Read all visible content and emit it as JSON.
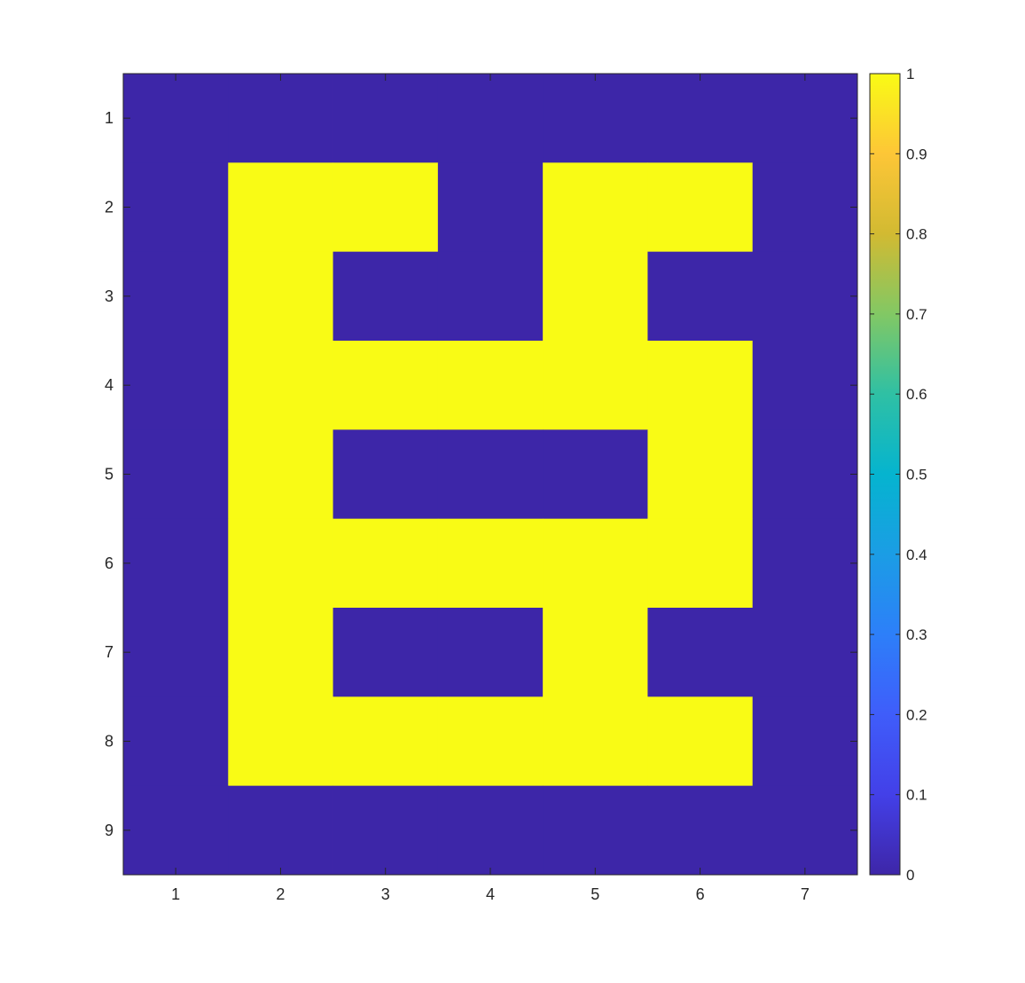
{
  "chart_data": {
    "type": "heatmap",
    "title": "",
    "xlabel": "",
    "ylabel": "",
    "x_ticks": [
      "1",
      "2",
      "3",
      "4",
      "5",
      "6",
      "7"
    ],
    "y_ticks": [
      "1",
      "2",
      "3",
      "4",
      "5",
      "6",
      "7",
      "8",
      "9"
    ],
    "xlim": [
      0.5,
      7.5
    ],
    "ylim": [
      0.5,
      9.5
    ],
    "y_direction": "reverse",
    "grid": false,
    "matrix": [
      [
        0,
        0,
        0,
        0,
        0,
        0,
        0
      ],
      [
        0,
        1,
        1,
        0,
        1,
        1,
        0
      ],
      [
        0,
        1,
        0,
        0,
        1,
        0,
        0
      ],
      [
        0,
        1,
        1,
        1,
        1,
        1,
        0
      ],
      [
        0,
        1,
        0,
        0,
        0,
        1,
        0
      ],
      [
        0,
        1,
        1,
        1,
        1,
        1,
        0
      ],
      [
        0,
        1,
        0,
        0,
        1,
        0,
        0
      ],
      [
        0,
        1,
        1,
        1,
        1,
        1,
        0
      ],
      [
        0,
        0,
        0,
        0,
        0,
        0,
        0
      ]
    ],
    "colormap": "parula",
    "colors": {
      "low": "#3d26a8",
      "high": "#f9fb15"
    },
    "colorbar": {
      "location": "right",
      "range": [
        0,
        1
      ],
      "ticks": [
        "0",
        "0.1",
        "0.2",
        "0.3",
        "0.4",
        "0.5",
        "0.6",
        "0.7",
        "0.8",
        "0.9",
        "1"
      ]
    }
  }
}
